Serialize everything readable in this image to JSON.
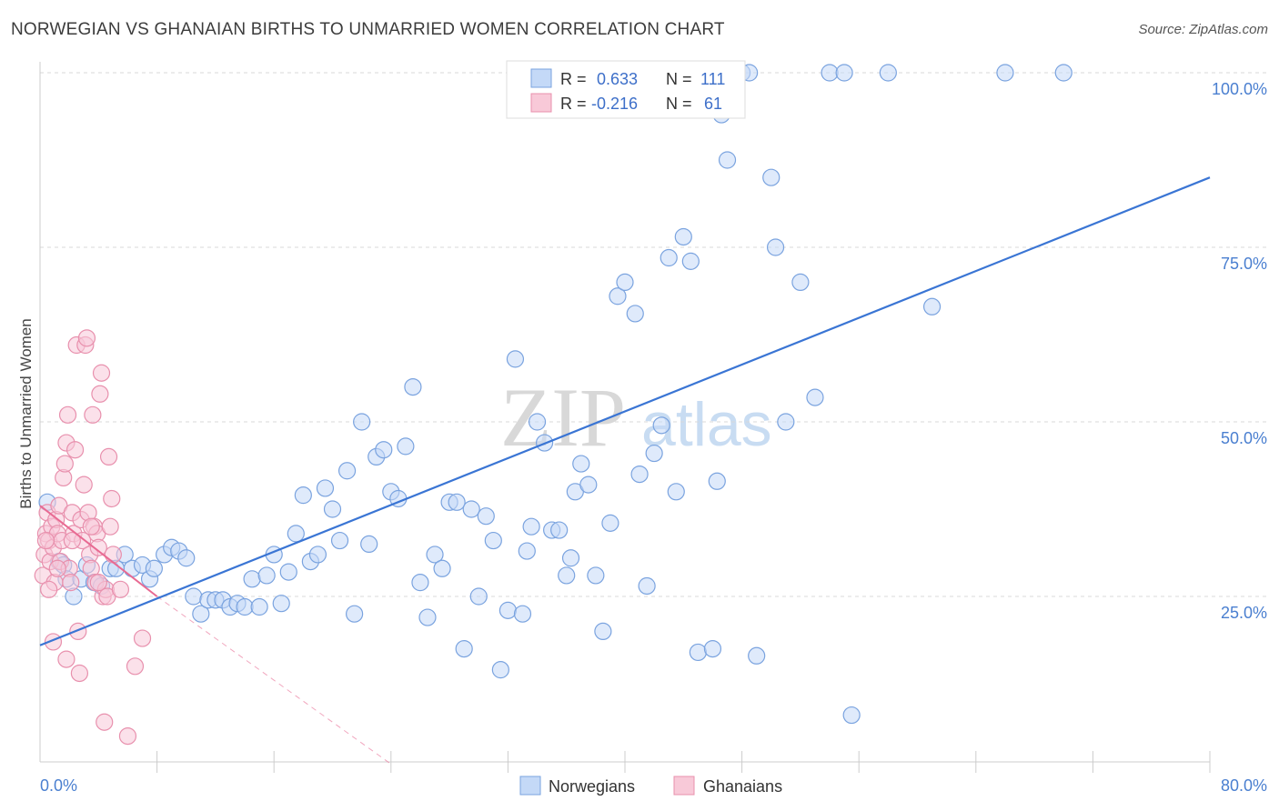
{
  "title": "NORWEGIAN VS GHANAIAN BIRTHS TO UNMARRIED WOMEN CORRELATION CHART",
  "source": "Source: ZipAtlas.com",
  "watermark": {
    "zip": "ZIP",
    "atlas": "atlas"
  },
  "colors": {
    "blue": "#3a75d4",
    "blue_fill": "#c4d9f7",
    "pink": "#e86a92",
    "pink_fill": "#f8c9d8",
    "tick_text": "#4a7fd0",
    "grid": "#d9d9d9"
  },
  "legend": {
    "rows": [
      {
        "r_label": "R =",
        "r_value": "0.633",
        "n_label": "N =",
        "n_value": "111"
      },
      {
        "r_label": "R =",
        "r_value": "-0.216",
        "n_label": "N =",
        "n_value": "61"
      }
    ]
  },
  "bottom_legend": [
    "Norwegians",
    "Ghanaians"
  ],
  "chart_data": {
    "type": "scatter",
    "ylabel": "Births to Unmarried Women",
    "x_tick_labels": [
      "0.0%",
      "80.0%"
    ],
    "y_tick_labels": [
      "100.0%",
      "75.0%",
      "50.0%",
      "25.0%"
    ],
    "y_tick_values": [
      100,
      75,
      50,
      25
    ],
    "xlim": [
      0,
      80
    ],
    "ylim": [
      0,
      102
    ],
    "series": [
      {
        "name": "Norwegians",
        "color": "#3a75d4",
        "r": 0.633,
        "n": 111,
        "trend": {
          "x": [
            0,
            80
          ],
          "y": [
            18,
            85
          ]
        },
        "points": [
          [
            0.5,
            38.5
          ],
          [
            1.3,
            30
          ],
          [
            1.6,
            29.5
          ],
          [
            1.8,
            27.5
          ],
          [
            2.3,
            25
          ],
          [
            2.8,
            27.5
          ],
          [
            3.2,
            29.5
          ],
          [
            3.7,
            27
          ],
          [
            4.2,
            26.5
          ],
          [
            4.8,
            29
          ],
          [
            5.2,
            29
          ],
          [
            5.8,
            31
          ],
          [
            6.3,
            29
          ],
          [
            7.0,
            29.5
          ],
          [
            7.5,
            27.5
          ],
          [
            7.8,
            29
          ],
          [
            8.5,
            31
          ],
          [
            9.0,
            32
          ],
          [
            9.5,
            31.5
          ],
          [
            10.0,
            30.5
          ],
          [
            10.5,
            25
          ],
          [
            11.0,
            22.5
          ],
          [
            11.5,
            24.5
          ],
          [
            12.0,
            24.5
          ],
          [
            12.5,
            24.5
          ],
          [
            13.0,
            23.5
          ],
          [
            13.5,
            24
          ],
          [
            14.0,
            23.5
          ],
          [
            14.5,
            27.5
          ],
          [
            15.0,
            23.5
          ],
          [
            15.5,
            28
          ],
          [
            16.0,
            31
          ],
          [
            16.5,
            24
          ],
          [
            17.0,
            28.5
          ],
          [
            17.5,
            34
          ],
          [
            18.0,
            39.5
          ],
          [
            18.5,
            30
          ],
          [
            19.0,
            31
          ],
          [
            19.5,
            40.5
          ],
          [
            20.0,
            37.5
          ],
          [
            20.5,
            33
          ],
          [
            21.0,
            43
          ],
          [
            21.5,
            22.5
          ],
          [
            22.0,
            50
          ],
          [
            22.5,
            32.5
          ],
          [
            23.0,
            45
          ],
          [
            23.5,
            46
          ],
          [
            24.0,
            40
          ],
          [
            24.5,
            39
          ],
          [
            25.0,
            46.5
          ],
          [
            25.5,
            55
          ],
          [
            26.0,
            27
          ],
          [
            26.5,
            22
          ],
          [
            27.0,
            31
          ],
          [
            27.5,
            29
          ],
          [
            28.0,
            38.5
          ],
          [
            28.5,
            38.5
          ],
          [
            29.0,
            17.5
          ],
          [
            29.5,
            37.5
          ],
          [
            30.0,
            25
          ],
          [
            30.5,
            36.5
          ],
          [
            31.0,
            33
          ],
          [
            31.5,
            14.5
          ],
          [
            32.0,
            23
          ],
          [
            32.5,
            59
          ],
          [
            33.0,
            22.5
          ],
          [
            33.3,
            31.5
          ],
          [
            33.6,
            35
          ],
          [
            34.0,
            50
          ],
          [
            34.5,
            47
          ],
          [
            35.0,
            34.5
          ],
          [
            35.5,
            34.5
          ],
          [
            36.0,
            28
          ],
          [
            36.3,
            30.5
          ],
          [
            36.6,
            40
          ],
          [
            37.0,
            44
          ],
          [
            37.5,
            41
          ],
          [
            38.0,
            28
          ],
          [
            38.5,
            20
          ],
          [
            39.0,
            35.5
          ],
          [
            39.5,
            68
          ],
          [
            40.0,
            70
          ],
          [
            40.7,
            65.5
          ],
          [
            41.0,
            42.5
          ],
          [
            41.5,
            26.5
          ],
          [
            42.0,
            45.5
          ],
          [
            42.5,
            49.5
          ],
          [
            43.0,
            73.5
          ],
          [
            43.5,
            40
          ],
          [
            44.0,
            76.5
          ],
          [
            44.5,
            73
          ],
          [
            45.0,
            17
          ],
          [
            46.0,
            17.5
          ],
          [
            46.3,
            41.5
          ],
          [
            46.6,
            94
          ],
          [
            47.0,
            87.5
          ],
          [
            48.0,
            100
          ],
          [
            48.5,
            100
          ],
          [
            49.0,
            16.5
          ],
          [
            50.0,
            85
          ],
          [
            50.3,
            75
          ],
          [
            51.0,
            50
          ],
          [
            52.0,
            70
          ],
          [
            53.0,
            53.5
          ],
          [
            54.0,
            100
          ],
          [
            55.0,
            100
          ],
          [
            55.5,
            8
          ],
          [
            58.0,
            100
          ],
          [
            61.0,
            66.5
          ],
          [
            66.0,
            100
          ],
          [
            70.0,
            100
          ]
        ]
      },
      {
        "name": "Ghanaians",
        "color": "#e86a92",
        "r": -0.216,
        "n": 61,
        "trend": {
          "x": [
            0,
            8
          ],
          "y": [
            38,
            25
          ]
        },
        "trend_ext": {
          "x": [
            8,
            24
          ],
          "y": [
            25,
            1
          ]
        },
        "points": [
          [
            0.2,
            28
          ],
          [
            0.3,
            31
          ],
          [
            0.4,
            34
          ],
          [
            0.5,
            37
          ],
          [
            0.6,
            33
          ],
          [
            0.7,
            30
          ],
          [
            0.8,
            35
          ],
          [
            0.9,
            32
          ],
          [
            1.0,
            27
          ],
          [
            1.1,
            36
          ],
          [
            1.2,
            34
          ],
          [
            1.3,
            38
          ],
          [
            1.4,
            30
          ],
          [
            1.5,
            33
          ],
          [
            1.6,
            42
          ],
          [
            1.7,
            44
          ],
          [
            1.8,
            47
          ],
          [
            1.9,
            51
          ],
          [
            2.0,
            29
          ],
          [
            2.1,
            27
          ],
          [
            2.2,
            37
          ],
          [
            2.3,
            34
          ],
          [
            2.4,
            46
          ],
          [
            2.5,
            61
          ],
          [
            2.6,
            20
          ],
          [
            2.7,
            14
          ],
          [
            2.8,
            36
          ],
          [
            2.9,
            33
          ],
          [
            3.0,
            41
          ],
          [
            3.1,
            61
          ],
          [
            3.2,
            62
          ],
          [
            3.3,
            37
          ],
          [
            3.4,
            31
          ],
          [
            3.5,
            29
          ],
          [
            3.6,
            51
          ],
          [
            3.7,
            35
          ],
          [
            3.8,
            27
          ],
          [
            3.9,
            34
          ],
          [
            4.0,
            32
          ],
          [
            4.1,
            54
          ],
          [
            4.2,
            57
          ],
          [
            4.3,
            25
          ],
          [
            4.4,
            7
          ],
          [
            4.5,
            26
          ],
          [
            4.6,
            25
          ],
          [
            4.7,
            45
          ],
          [
            4.8,
            35
          ],
          [
            4.9,
            39
          ],
          [
            5.0,
            31
          ],
          [
            5.5,
            26
          ],
          [
            6.0,
            5
          ],
          [
            6.5,
            15
          ],
          [
            7.0,
            19
          ],
          [
            0.9,
            18.5
          ],
          [
            1.8,
            16
          ],
          [
            1.2,
            29
          ],
          [
            0.6,
            26
          ],
          [
            0.4,
            33
          ],
          [
            2.2,
            33
          ],
          [
            3.5,
            35
          ],
          [
            4.0,
            27
          ]
        ]
      }
    ]
  }
}
